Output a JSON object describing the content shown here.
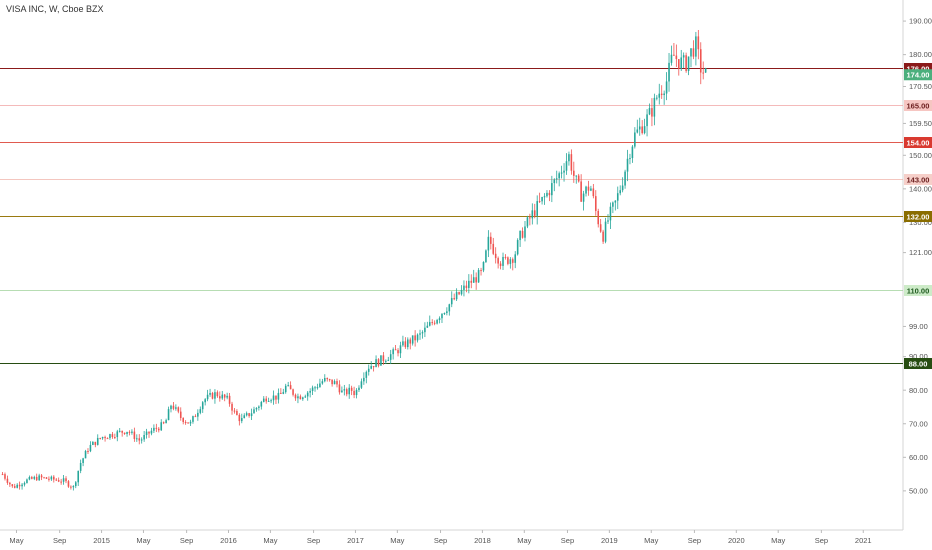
{
  "title": "VISA INC, W, Cboe BZX",
  "chart_data": {
    "type": "candlestick",
    "title": "VISA INC, W, Cboe BZX",
    "xlabel": "",
    "ylabel": "",
    "ylim": [
      44,
      193
    ],
    "xlim": [
      2014.2,
      2021.25
    ],
    "y_ticks": [
      {
        "v": 190,
        "label": "190.00"
      },
      {
        "v": 180,
        "label": "180.00"
      },
      {
        "v": 170.5,
        "label": "170.50"
      },
      {
        "v": 159.5,
        "label": "159.50"
      },
      {
        "v": 150,
        "label": "150.00"
      },
      {
        "v": 140,
        "label": "140.00"
      },
      {
        "v": 130,
        "label": "130.00"
      },
      {
        "v": 121,
        "label": "121.00"
      },
      {
        "v": 99,
        "label": "99.00"
      },
      {
        "v": 90,
        "label": "90.00"
      },
      {
        "v": 80,
        "label": "80.00"
      },
      {
        "v": 70,
        "label": "70.00"
      },
      {
        "v": 60,
        "label": "60.00"
      },
      {
        "v": 50,
        "label": "50.00"
      }
    ],
    "x_ticks": [
      {
        "t": 2014.33,
        "label": "May"
      },
      {
        "t": 2014.67,
        "label": "Sep"
      },
      {
        "t": 2015.0,
        "label": "2015"
      },
      {
        "t": 2015.33,
        "label": "May"
      },
      {
        "t": 2015.67,
        "label": "Sep"
      },
      {
        "t": 2016.0,
        "label": "2016"
      },
      {
        "t": 2016.33,
        "label": "May"
      },
      {
        "t": 2016.67,
        "label": "Sep"
      },
      {
        "t": 2017.0,
        "label": "2017"
      },
      {
        "t": 2017.33,
        "label": "May"
      },
      {
        "t": 2017.67,
        "label": "Sep"
      },
      {
        "t": 2018.0,
        "label": "2018"
      },
      {
        "t": 2018.33,
        "label": "May"
      },
      {
        "t": 2018.67,
        "label": "Sep"
      },
      {
        "t": 2019.0,
        "label": "2019"
      },
      {
        "t": 2019.33,
        "label": "May"
      },
      {
        "t": 2019.67,
        "label": "Sep"
      },
      {
        "t": 2020.0,
        "label": "2020"
      },
      {
        "t": 2020.33,
        "label": "May"
      },
      {
        "t": 2020.67,
        "label": "Sep"
      },
      {
        "t": 2021.0,
        "label": "2021"
      }
    ],
    "levels": [
      {
        "value": 176,
        "label": "176.00",
        "color": "#8b1a1a",
        "badge": "#8b1a1a",
        "text": "#ffffff",
        "width": 1
      },
      {
        "value": 165,
        "label": "165.00",
        "color": "#f0a3a3",
        "badge": "#f6c6c2",
        "text": "#6b1d1d",
        "width": 0.8
      },
      {
        "value": 154,
        "label": "154.00",
        "color": "#e05a4f",
        "badge": "#d93a30",
        "text": "#ffffff",
        "width": 1
      },
      {
        "value": 143,
        "label": "143.00",
        "color": "#f0b3aa",
        "badge": "#f6cfc9",
        "text": "#6b1d1d",
        "width": 0.8
      },
      {
        "value": 132,
        "label": "132.00",
        "color": "#9a7a10",
        "badge": "#8a6d00",
        "text": "#ffffff",
        "width": 1
      },
      {
        "value": 110,
        "label": "110.00",
        "color": "#9fd29a",
        "badge": "#cdebc8",
        "text": "#1e5a1e",
        "width": 0.8
      },
      {
        "value": 88,
        "label": "88.00",
        "color": "#274d12",
        "badge": "#274d12",
        "text": "#ffffff",
        "width": 1
      }
    ],
    "last_price": {
      "value": 174,
      "label": "174.00",
      "color": "#4caf7d"
    },
    "anchors": [
      [
        2014.22,
        55
      ],
      [
        2014.3,
        51
      ],
      [
        2014.4,
        53
      ],
      [
        2014.5,
        54
      ],
      [
        2014.6,
        53.5
      ],
      [
        2014.7,
        53
      ],
      [
        2014.78,
        51
      ],
      [
        2014.83,
        58
      ],
      [
        2014.9,
        63
      ],
      [
        2015.0,
        66
      ],
      [
        2015.1,
        67
      ],
      [
        2015.2,
        68
      ],
      [
        2015.3,
        65
      ],
      [
        2015.4,
        68
      ],
      [
        2015.5,
        70
      ],
      [
        2015.55,
        76
      ],
      [
        2015.62,
        72
      ],
      [
        2015.7,
        70
      ],
      [
        2015.8,
        77
      ],
      [
        2015.9,
        79
      ],
      [
        2016.0,
        77
      ],
      [
        2016.05,
        73
      ],
      [
        2016.1,
        71
      ],
      [
        2016.2,
        74
      ],
      [
        2016.3,
        78
      ],
      [
        2016.4,
        78
      ],
      [
        2016.45,
        81
      ],
      [
        2016.55,
        78
      ],
      [
        2016.65,
        80
      ],
      [
        2016.75,
        83
      ],
      [
        2016.85,
        82
      ],
      [
        2016.9,
        79
      ],
      [
        2016.97,
        80
      ],
      [
        2017.0,
        79
      ],
      [
        2017.05,
        84
      ],
      [
        2017.1,
        87
      ],
      [
        2017.2,
        89
      ],
      [
        2017.3,
        91
      ],
      [
        2017.4,
        94
      ],
      [
        2017.5,
        96
      ],
      [
        2017.6,
        100
      ],
      [
        2017.7,
        104
      ],
      [
        2017.8,
        108
      ],
      [
        2017.9,
        112
      ],
      [
        2018.0,
        115
      ],
      [
        2018.05,
        125
      ],
      [
        2018.1,
        121
      ],
      [
        2018.15,
        118
      ],
      [
        2018.2,
        119
      ],
      [
        2018.25,
        120
      ],
      [
        2018.3,
        126
      ],
      [
        2018.4,
        133
      ],
      [
        2018.5,
        138
      ],
      [
        2018.6,
        144
      ],
      [
        2018.68,
        150
      ],
      [
        2018.72,
        144
      ],
      [
        2018.78,
        138
      ],
      [
        2018.85,
        141
      ],
      [
        2018.9,
        132
      ],
      [
        2018.95,
        126
      ],
      [
        2019.0,
        132
      ],
      [
        2019.05,
        136
      ],
      [
        2019.1,
        142
      ],
      [
        2019.15,
        150
      ],
      [
        2019.2,
        156
      ],
      [
        2019.28,
        160
      ],
      [
        2019.33,
        163
      ],
      [
        2019.38,
        168
      ],
      [
        2019.45,
        172
      ],
      [
        2019.5,
        180
      ],
      [
        2019.55,
        178
      ],
      [
        2019.6,
        177
      ],
      [
        2019.63,
        180
      ],
      [
        2019.68,
        183
      ],
      [
        2019.72,
        176
      ],
      [
        2019.76,
        174
      ]
    ]
  }
}
